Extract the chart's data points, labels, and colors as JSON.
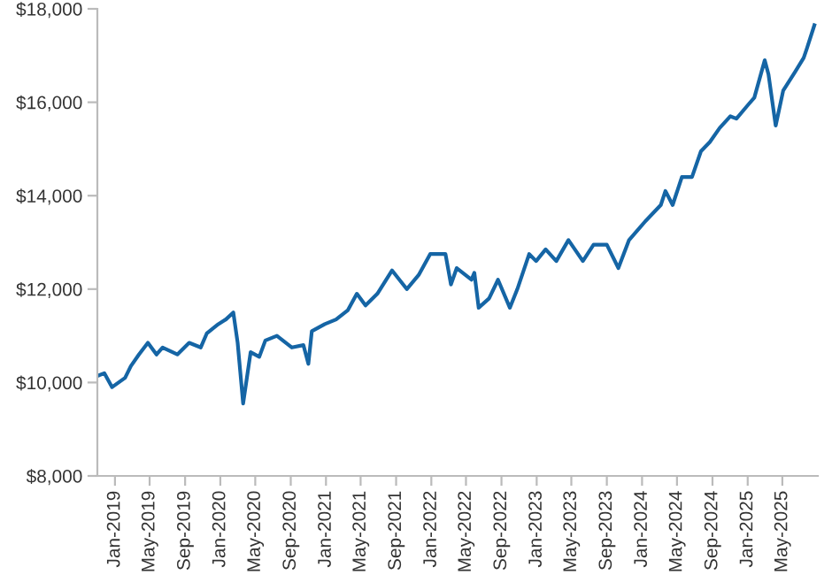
{
  "chart_data": {
    "type": "line",
    "x": [
      "2018-11-05",
      "2018-11-25",
      "2018-12-22",
      "2019-02-05",
      "2019-02-25",
      "2019-03-25",
      "2019-04-25",
      "2019-05-25",
      "2019-06-15",
      "2019-08-05",
      "2019-09-15",
      "2019-10-25",
      "2019-11-15",
      "2019-12-25",
      "2020-01-20",
      "2020-02-15",
      "2020-03-01",
      "2020-03-20",
      "2020-04-15",
      "2020-05-15",
      "2020-06-05",
      "2020-07-15",
      "2020-09-05",
      "2020-10-15",
      "2020-11-01",
      "2020-11-13",
      "2020-12-28",
      "2021-02-05",
      "2021-03-18",
      "2021-04-18",
      "2021-05-18",
      "2021-06-28",
      "2021-08-18",
      "2021-10-08",
      "2021-11-18",
      "2021-12-28",
      "2022-02-19",
      "2022-03-10",
      "2022-03-30",
      "2022-05-20",
      "2022-05-30",
      "2022-06-14",
      "2022-07-20",
      "2022-08-20",
      "2022-09-30",
      "2022-10-26",
      "2022-12-06",
      "2022-12-30",
      "2023-02-01",
      "2023-03-10",
      "2023-04-21",
      "2023-06-10",
      "2023-07-17",
      "2023-09-01",
      "2023-10-11",
      "2023-11-17",
      "2024-01-12",
      "2024-03-06",
      "2024-03-22",
      "2024-04-16",
      "2024-05-18",
      "2024-06-22",
      "2024-07-23",
      "2024-08-23",
      "2024-09-26",
      "2024-11-02",
      "2024-11-23",
      "2025-01-03",
      "2025-01-24",
      "2025-03-01",
      "2025-03-14",
      "2025-04-08",
      "2025-05-04",
      "2025-06-14",
      "2025-07-14",
      "2025-07-25",
      "2025-08-20"
    ],
    "series": [
      {
        "color": "#1565a5",
        "values": [
          10150,
          10200,
          9900,
          10100,
          10350,
          10600,
          10850,
          10600,
          10750,
          10600,
          10850,
          10750,
          11050,
          11250,
          11350,
          11500,
          10850,
          9550,
          10650,
          10550,
          10900,
          11000,
          10750,
          10800,
          10400,
          11100,
          11250,
          11350,
          11550,
          11900,
          11650,
          11900,
          12400,
          12000,
          12300,
          12750,
          12750,
          12100,
          12450,
          12200,
          12350,
          11600,
          11800,
          12200,
          11600,
          12000,
          12750,
          12600,
          12850,
          12600,
          13050,
          12600,
          12950,
          12950,
          12450,
          13050,
          13450,
          13800,
          14100,
          13800,
          14400,
          14400,
          14950,
          15150,
          15450,
          15700,
          15650,
          15950,
          16100,
          16900,
          16600,
          15500,
          16250,
          16650,
          16950,
          17150,
          17650
        ]
      }
    ],
    "xlim": [
      "2018-11",
      "2025-09"
    ],
    "xticks": [
      {
        "value": "2019-01",
        "label": "Jan-2019"
      },
      {
        "value": "2019-05",
        "label": "May-2019"
      },
      {
        "value": "2019-09",
        "label": "Sep-2019"
      },
      {
        "value": "2020-01",
        "label": "Jan-2020"
      },
      {
        "value": "2020-05",
        "label": "May-2020"
      },
      {
        "value": "2020-09",
        "label": "Sep-2020"
      },
      {
        "value": "2021-01",
        "label": "Jan-2021"
      },
      {
        "value": "2021-05",
        "label": "May-2021"
      },
      {
        "value": "2021-09",
        "label": "Sep-2021"
      },
      {
        "value": "2022-01",
        "label": "Jan-2022"
      },
      {
        "value": "2022-05",
        "label": "May-2022"
      },
      {
        "value": "2022-09",
        "label": "Sep-2022"
      },
      {
        "value": "2023-01",
        "label": "Jan-2023"
      },
      {
        "value": "2023-05",
        "label": "May-2023"
      },
      {
        "value": "2023-09",
        "label": "Sep-2023"
      },
      {
        "value": "2024-01",
        "label": "Jan-2024"
      },
      {
        "value": "2024-05",
        "label": "May-2024"
      },
      {
        "value": "2024-09",
        "label": "Sep-2024"
      },
      {
        "value": "2025-01",
        "label": "Jan-2025"
      },
      {
        "value": "2025-05",
        "label": "May-2025"
      }
    ],
    "ylim": [
      8000,
      18000
    ],
    "yticks": [
      {
        "value": 8000,
        "label": "$8,000"
      },
      {
        "value": 10000,
        "label": "$10,000"
      },
      {
        "value": 12000,
        "label": "$12,000"
      },
      {
        "value": 14000,
        "label": "$14,000"
      },
      {
        "value": 16000,
        "label": "$16,000"
      },
      {
        "value": 18000,
        "label": "$18,000"
      }
    ],
    "grid": false
  }
}
